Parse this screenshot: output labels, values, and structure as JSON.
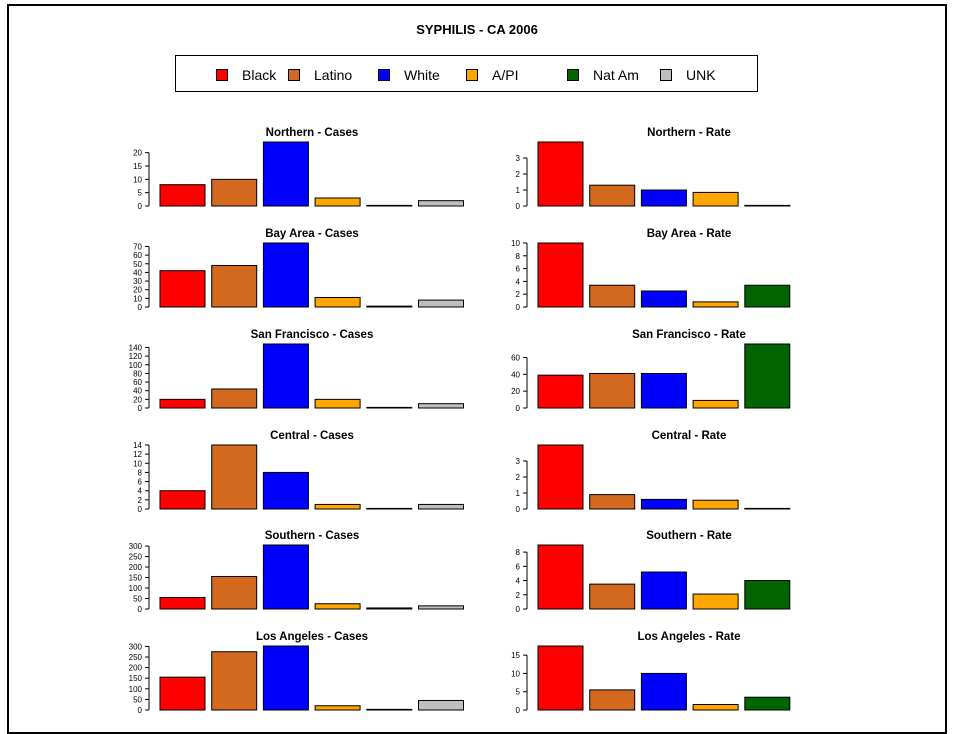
{
  "title": "SYPHILIS  - CA 2006",
  "legend": [
    {
      "label": "Black",
      "color": "#ff0000"
    },
    {
      "label": "Latino",
      "color": "#d2691e"
    },
    {
      "label": "White",
      "color": "#0000ff"
    },
    {
      "label": "A/PI",
      "color": "#ffa500"
    },
    {
      "label": "Nat Am",
      "color": "#006400"
    },
    {
      "label": "UNK",
      "color": "#bebebe"
    }
  ],
  "chart_data": [
    {
      "type": "bar",
      "title": "Northern - Cases",
      "categories": [
        "Black",
        "Latino",
        "White",
        "A/PI",
        "Nat Am",
        "UNK"
      ],
      "values": [
        8,
        10,
        24,
        3,
        0,
        2
      ],
      "yticks": [
        0,
        5,
        10,
        15,
        20
      ],
      "ylim": [
        0,
        24
      ]
    },
    {
      "type": "bar",
      "title": "Northern - Rate",
      "categories": [
        "Black",
        "Latino",
        "White",
        "A/PI",
        "Nat Am"
      ],
      "values": [
        4.0,
        1.3,
        1.0,
        0.85,
        0
      ],
      "yticks": [
        0,
        1,
        2,
        3
      ],
      "ylim": [
        0,
        4.0
      ]
    },
    {
      "type": "bar",
      "title": "Bay Area - Cases",
      "categories": [
        "Black",
        "Latino",
        "White",
        "A/PI",
        "Nat Am",
        "UNK"
      ],
      "values": [
        42,
        48,
        74,
        11,
        1,
        8
      ],
      "yticks": [
        0,
        10,
        20,
        30,
        40,
        50,
        60,
        70
      ],
      "ylim": [
        0,
        74
      ]
    },
    {
      "type": "bar",
      "title": "Bay Area - Rate",
      "categories": [
        "Black",
        "Latino",
        "White",
        "A/PI",
        "Nat Am"
      ],
      "values": [
        10.0,
        3.4,
        2.5,
        0.8,
        3.4
      ],
      "yticks": [
        0,
        2,
        4,
        6,
        8,
        10
      ],
      "ylim": [
        0,
        10
      ]
    },
    {
      "type": "bar",
      "title": "San Francisco - Cases",
      "categories": [
        "Black",
        "Latino",
        "White",
        "A/PI",
        "Nat Am",
        "UNK"
      ],
      "values": [
        20,
        44,
        148,
        20,
        1,
        10
      ],
      "yticks": [
        0,
        20,
        40,
        60,
        80,
        100,
        120,
        140
      ],
      "ylim": [
        0,
        148
      ]
    },
    {
      "type": "bar",
      "title": "San Francisco - Rate",
      "categories": [
        "Black",
        "Latino",
        "White",
        "A/PI",
        "Nat Am"
      ],
      "values": [
        39,
        41,
        41,
        9,
        76
      ],
      "yticks": [
        0,
        20,
        40,
        60
      ],
      "ylim": [
        0,
        76
      ]
    },
    {
      "type": "bar",
      "title": "Central - Cases",
      "categories": [
        "Black",
        "Latino",
        "White",
        "A/PI",
        "Nat Am",
        "UNK"
      ],
      "values": [
        4,
        14,
        8,
        1,
        0,
        1
      ],
      "yticks": [
        0,
        2,
        4,
        6,
        8,
        10,
        12,
        14
      ],
      "ylim": [
        0,
        14
      ]
    },
    {
      "type": "bar",
      "title": "Central - Rate",
      "categories": [
        "Black",
        "Latino",
        "White",
        "A/PI",
        "Nat Am"
      ],
      "values": [
        4.0,
        0.9,
        0.6,
        0.55,
        0
      ],
      "yticks": [
        0,
        1,
        2,
        3
      ],
      "ylim": [
        0,
        4.0
      ]
    },
    {
      "type": "bar",
      "title": "Southern - Cases",
      "categories": [
        "Black",
        "Latino",
        "White",
        "A/PI",
        "Nat Am",
        "UNK"
      ],
      "values": [
        55,
        155,
        305,
        25,
        5,
        15
      ],
      "yticks": [
        0,
        50,
        100,
        150,
        200,
        250,
        300
      ],
      "ylim": [
        0,
        305
      ]
    },
    {
      "type": "bar",
      "title": "Southern - Rate",
      "categories": [
        "Black",
        "Latino",
        "White",
        "A/PI",
        "Nat Am"
      ],
      "values": [
        9.0,
        3.5,
        5.2,
        2.1,
        4.0
      ],
      "yticks": [
        0,
        2,
        4,
        6,
        8
      ],
      "ylim": [
        0,
        9.0
      ]
    },
    {
      "type": "bar",
      "title": "Los Angeles - Cases",
      "categories": [
        "Black",
        "Latino",
        "White",
        "A/PI",
        "Nat Am",
        "UNK"
      ],
      "values": [
        155,
        275,
        302,
        20,
        3,
        45
      ],
      "yticks": [
        0,
        50,
        100,
        150,
        200,
        250,
        300
      ],
      "ylim": [
        0,
        302
      ]
    },
    {
      "type": "bar",
      "title": "Los Angeles - Rate",
      "categories": [
        "Black",
        "Latino",
        "White",
        "A/PI",
        "Nat Am"
      ],
      "values": [
        17.5,
        5.5,
        10.0,
        1.5,
        3.5
      ],
      "yticks": [
        0,
        5,
        10,
        15
      ],
      "ylim": [
        0,
        17.5
      ]
    }
  ]
}
